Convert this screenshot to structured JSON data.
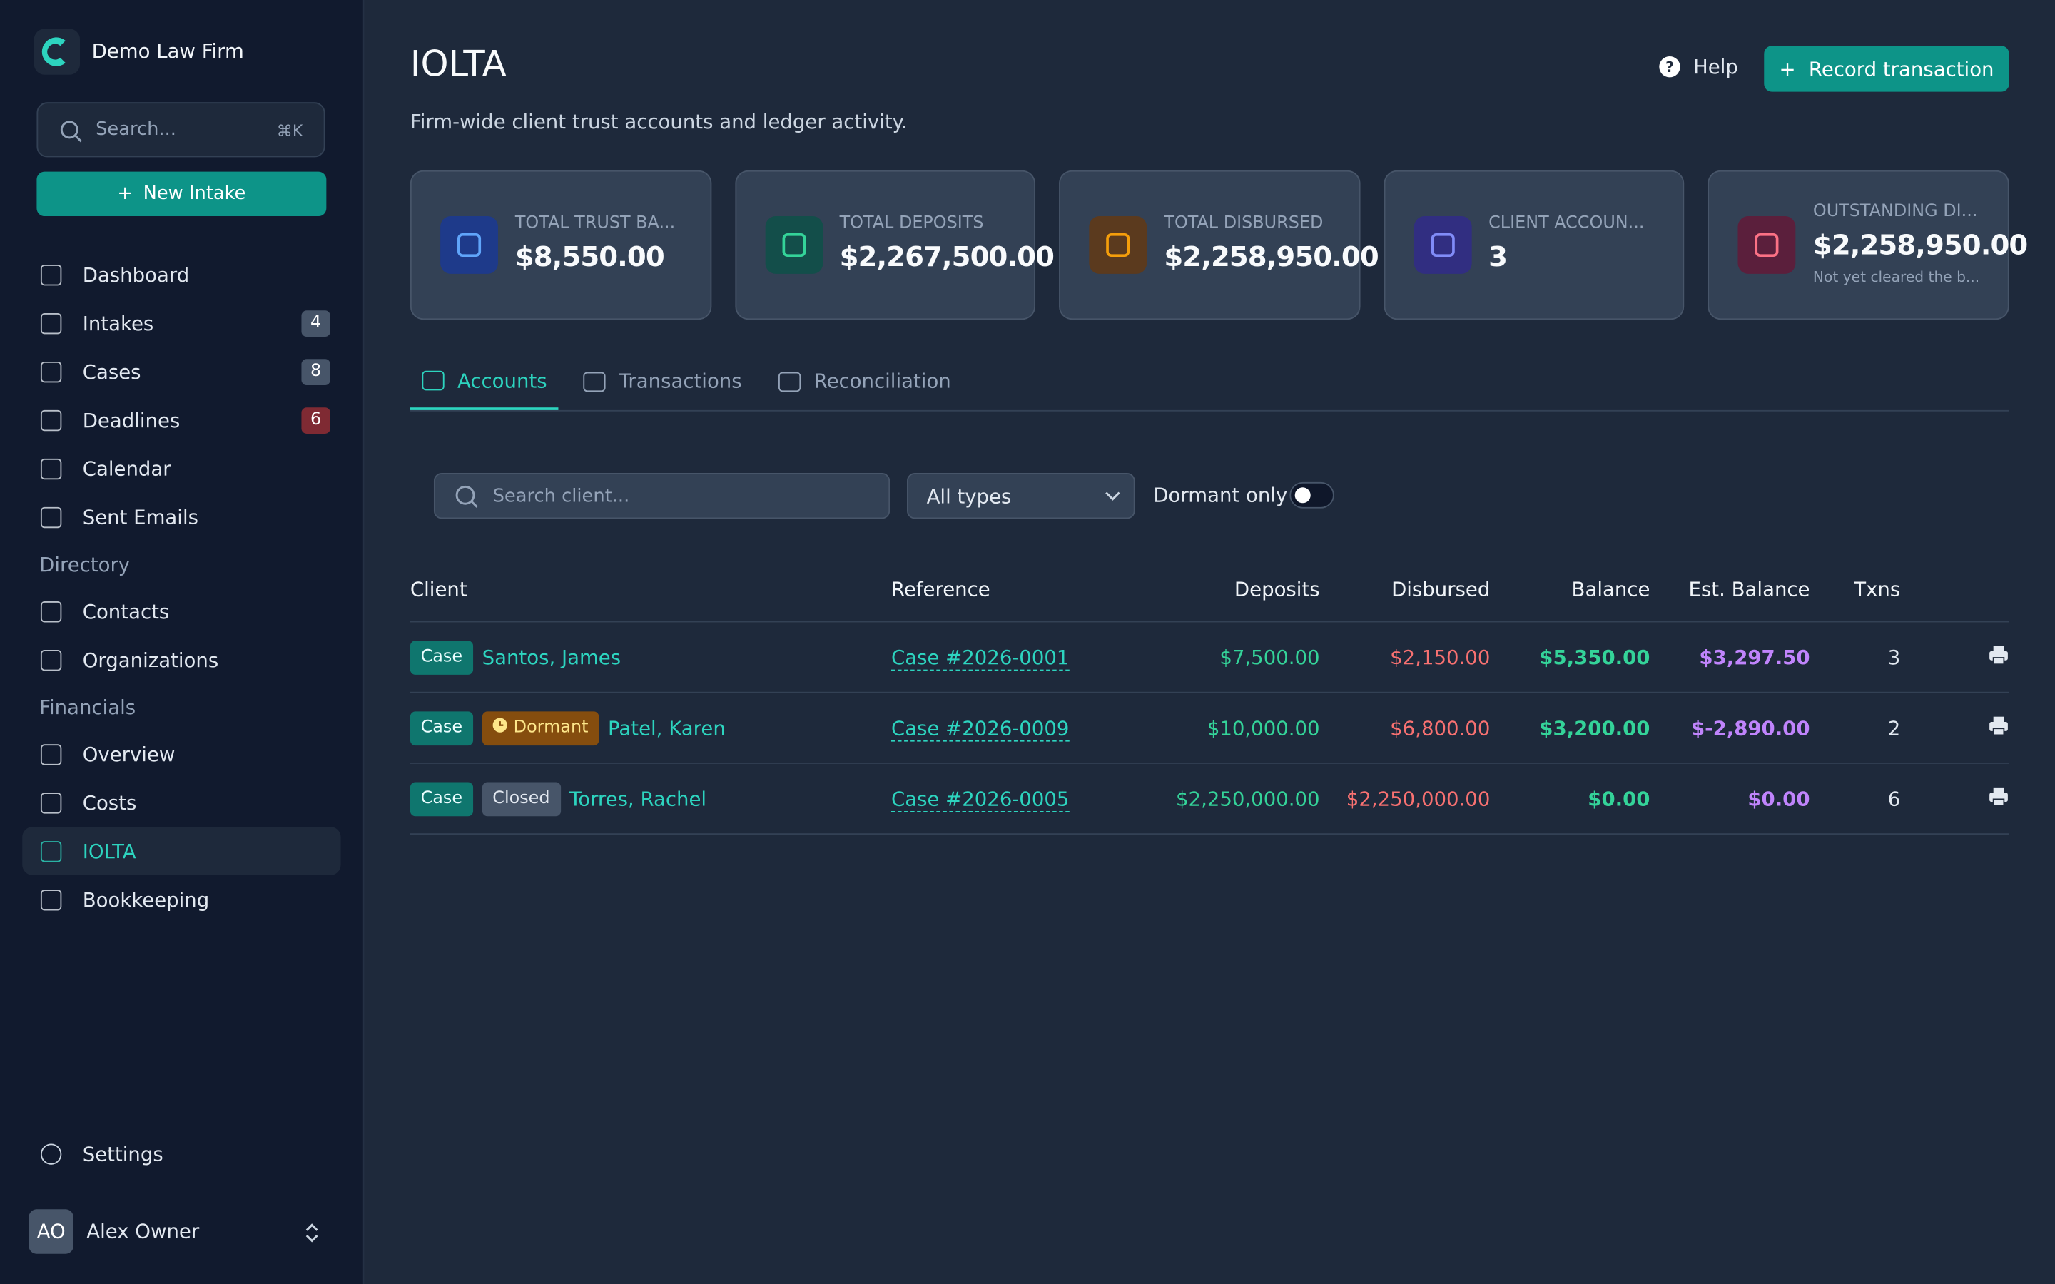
{
  "sidebar": {
    "firm": "Demo Law Firm",
    "search": "Search...",
    "shortcut": "⌘K",
    "new_intake": "New Intake",
    "groups": [
      {
        "items": [
          {
            "label": "Dashboard"
          },
          {
            "label": "Intakes",
            "badge": 4
          },
          {
            "label": "Cases",
            "badge": 8
          },
          {
            "label": "Deadlines",
            "badge": 6
          },
          {
            "label": "Calendar"
          },
          {
            "label": "Sent Emails"
          }
        ]
      },
      {
        "heading": "Directory",
        "items": [
          {
            "label": "Contacts"
          },
          {
            "label": "Organizations"
          }
        ]
      },
      {
        "heading": "Financials",
        "items": [
          {
            "label": "Overview"
          },
          {
            "label": "Costs"
          },
          {
            "label": "IOLTA",
            "active": true
          },
          {
            "label": "Bookkeeping"
          }
        ]
      }
    ],
    "settings": "Settings",
    "user": {
      "initials": "AO",
      "name": "Alex Owner"
    }
  },
  "header": {
    "title": "IOLTA",
    "subtitle": "Firm-wide client trust accounts and ledger activity.",
    "help": "Help",
    "record": "Record transaction"
  },
  "stats": [
    {
      "label": "TOTAL TRUST BA...",
      "value": "$8,550.00",
      "tone": "blue"
    },
    {
      "label": "TOTAL DEPOSITS",
      "value": "$2,267,500.00",
      "tone": "green"
    },
    {
      "label": "TOTAL DISBURSED",
      "value": "$2,258,950.00",
      "tone": "orange"
    },
    {
      "label": "CLIENT ACCOUN...",
      "value": "3",
      "tone": "indigo"
    },
    {
      "label": "OUTSTANDING DI...",
      "value": "$2,258,950.00",
      "note": "Not yet cleared the b...",
      "tone": "pink"
    }
  ],
  "tabs": [
    "Accounts",
    "Transactions",
    "Reconciliation"
  ],
  "active_tab": 0,
  "filters": {
    "search": "Search client...",
    "type": "All types",
    "dormant": "Dormant only"
  },
  "table": {
    "columns": [
      "Client",
      "Reference",
      "Deposits",
      "Disbursed",
      "Balance",
      "Est. Balance",
      "Txns"
    ],
    "rows": [
      {
        "tags": [
          "Case"
        ],
        "client": "Santos, James",
        "reference": "Case #2026-0001",
        "deposits": "$7,500.00",
        "disbursed": "$2,150.00",
        "balance": "$5,350.00",
        "est_balance": "$3,297.50",
        "txns": 3
      },
      {
        "tags": [
          "Case",
          "Dormant"
        ],
        "client": "Patel, Karen",
        "reference": "Case #2026-0009",
        "deposits": "$10,000.00",
        "disbursed": "$6,800.00",
        "balance": "$3,200.00",
        "est_balance": "$-2,890.00",
        "txns": 2
      },
      {
        "tags": [
          "Case",
          "Closed"
        ],
        "client": "Torres, Rachel",
        "reference": "Case #2026-0005",
        "deposits": "$2,250,000.00",
        "disbursed": "$2,250,000.00",
        "balance": "$0.00",
        "est_balance": "$0.00",
        "txns": 6
      }
    ]
  }
}
